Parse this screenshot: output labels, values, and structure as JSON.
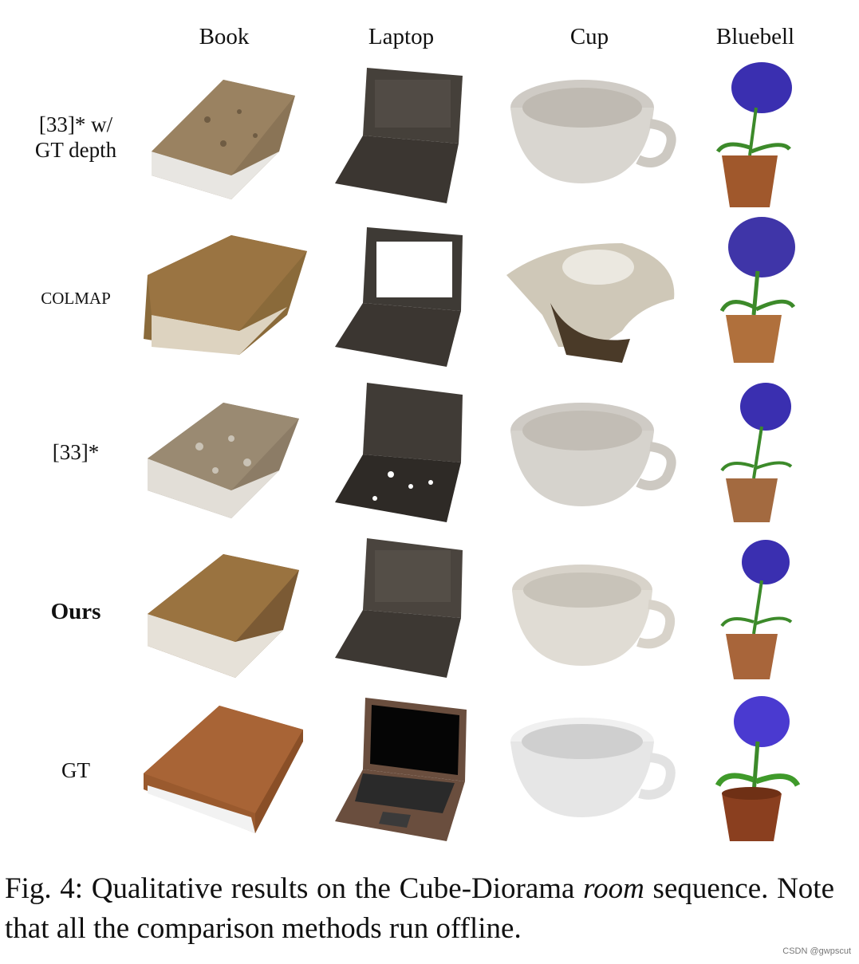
{
  "figure": {
    "columns": [
      "Book",
      "Laptop",
      "Cup",
      "Bluebell"
    ],
    "rows": [
      {
        "label_line1": "[33]* w/",
        "label_line2": "GT depth",
        "style": "normal"
      },
      {
        "label_line1": "COLMAP",
        "label_line2": "",
        "style": "small"
      },
      {
        "label_line1": "[33]*",
        "label_line2": "",
        "style": "normal"
      },
      {
        "label_line1": "Ours",
        "label_line2": "",
        "style": "bold"
      },
      {
        "label_line1": "GT",
        "label_line2": "",
        "style": "normal"
      }
    ]
  },
  "caption": {
    "prefix": "Fig. 4: Qualitative results on the Cube-Diorama ",
    "emph": "room",
    "suffix": " sequence. Note that all the comparison methods run offline."
  },
  "watermark": "CSDN @gwpscut",
  "colors": {
    "book_recon": "#8a6a45",
    "book_gt": "#9a5a2e",
    "laptop_recon": "#3b3631",
    "laptop_gt": "#6a4e3e",
    "cup": "#d9d6d0",
    "flower": "#3a2fb0",
    "pot": "#a0582c",
    "leaf": "#3c8a2a"
  }
}
